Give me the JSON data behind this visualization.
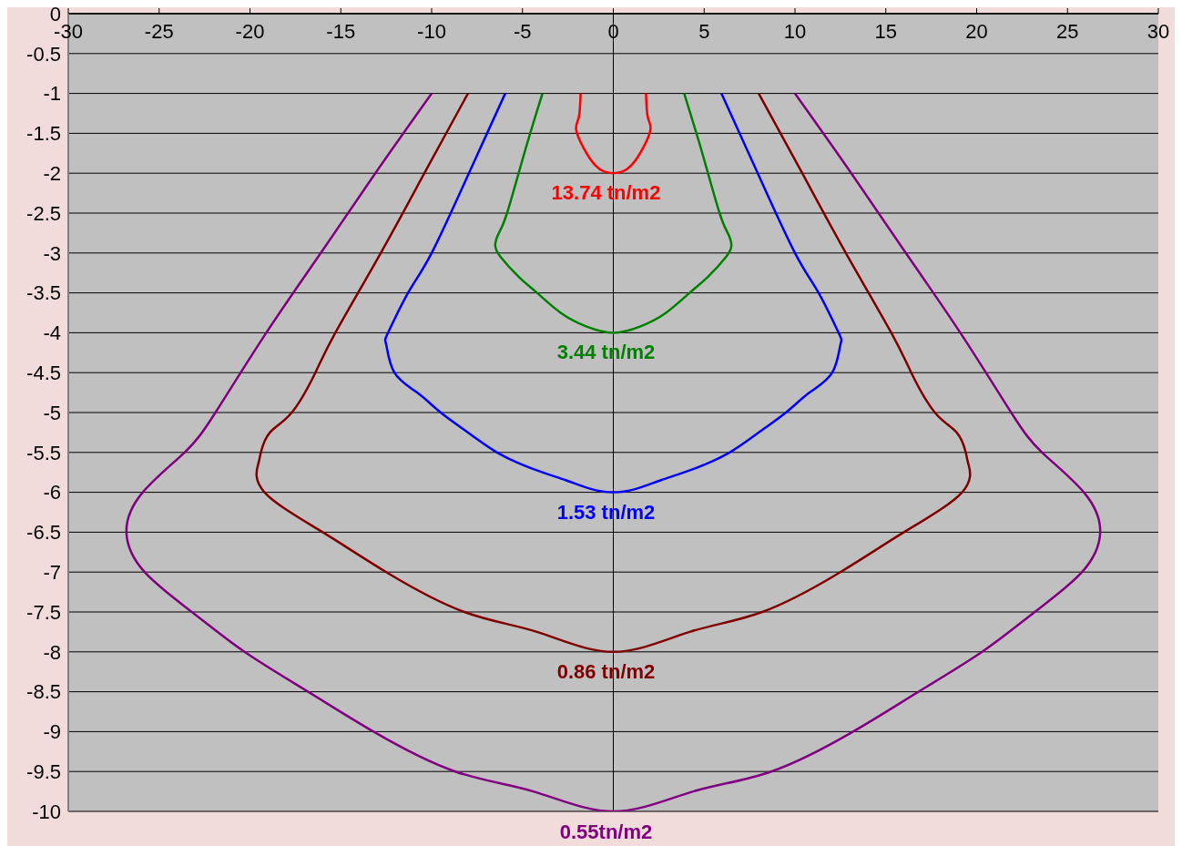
{
  "chart_data": {
    "type": "line",
    "xlim": [
      -30,
      30
    ],
    "xticks": [
      -30,
      -25,
      -20,
      -15,
      -10,
      -5,
      0,
      5,
      10,
      15,
      20,
      25,
      30
    ],
    "ylim": [
      -10,
      0
    ],
    "yticks": [
      -10,
      -9.5,
      -9,
      -8.5,
      -8,
      -7.5,
      -7,
      -6.5,
      -6,
      -5.5,
      -5,
      -4.5,
      -4,
      -3.5,
      -3,
      -2.5,
      -2,
      -1.5,
      -1,
      -0.5,
      0
    ],
    "grid": "y",
    "ref_lines": [
      {
        "axis": "x",
        "value": 0,
        "color": "#000000"
      }
    ],
    "annotations": [
      "13.74 tn/m2",
      "3.44 tn/m2",
      "1.53 tn/m2",
      "0.86 tn/m2",
      "0.55tn/m2"
    ],
    "series": [
      {
        "color": "#ff0000",
        "x": [
          -1.8,
          -1.9,
          -2.05,
          -1.6,
          -1,
          -0.5,
          0,
          0.5,
          1,
          1.6,
          2.05,
          1.9,
          1.8
        ],
        "values": [
          -1,
          -1.3,
          -1.45,
          -1.7,
          -1.9,
          -1.98,
          -2,
          -1.98,
          -1.9,
          -1.7,
          -1.45,
          -1.3,
          -1
        ]
      },
      {
        "color": "#008000",
        "x": [
          -3.9,
          -4.9,
          -5.85,
          -6.3,
          -6.5,
          -6.2,
          -5.2,
          -4.2,
          -2.9,
          -1.5,
          0,
          1.5,
          2.9,
          4.2,
          5.2,
          6.2,
          6.5,
          6.3,
          5.85,
          4.9,
          3.9
        ],
        "values": [
          -1,
          -1.75,
          -2.5,
          -2.75,
          -2.9,
          -3.05,
          -3.3,
          -3.5,
          -3.75,
          -3.92,
          -4,
          -3.92,
          -3.75,
          -3.5,
          -3.3,
          -3.05,
          -2.9,
          -2.75,
          -2.5,
          -1.75,
          -1
        ]
      },
      {
        "color": "#0000ff",
        "x": [
          -5.95,
          -7.95,
          -10,
          -11.3,
          -12.4,
          -12.5,
          -12.05,
          -10.8,
          -9.5,
          -8,
          -6.4,
          -4.5,
          -2.6,
          -1.2,
          0,
          1.2,
          2.6,
          4.5,
          6.4,
          8,
          9.5,
          10.8,
          12.05,
          12.5,
          12.4,
          11.3,
          10,
          7.95,
          5.95
        ],
        "values": [
          -1,
          -2,
          -3,
          -3.5,
          -4,
          -4.15,
          -4.5,
          -4.75,
          -5,
          -5.25,
          -5.5,
          -5.7,
          -5.85,
          -5.96,
          -6,
          -5.96,
          -5.85,
          -5.7,
          -5.5,
          -5.25,
          -5,
          -4.75,
          -4.5,
          -4.15,
          -4,
          -3.5,
          -3,
          -2,
          -1
        ]
      },
      {
        "color": "#800000",
        "x": [
          -8,
          -10.4,
          -12.8,
          -15.3,
          -16.4,
          -17.7,
          -18.9,
          -19.4,
          -19.55,
          -19.2,
          -16,
          -12.5,
          -8.2,
          -4.2,
          0,
          4.2,
          8.2,
          12.5,
          16,
          19.2,
          19.55,
          19.4,
          18.9,
          17.7,
          16.4,
          15.3,
          12.8,
          10.4,
          8
        ],
        "values": [
          -1,
          -2,
          -3,
          -4,
          -4.5,
          -5,
          -5.25,
          -5.5,
          -5.65,
          -6,
          -6.5,
          -7,
          -7.5,
          -7.75,
          -8,
          -7.75,
          -7.5,
          -7,
          -6.5,
          -6,
          -5.65,
          -5.5,
          -5.25,
          -5,
          -4.5,
          -4,
          -3,
          -2,
          -1
        ]
      },
      {
        "color": "#800080",
        "x": [
          -10,
          -13.1,
          -16.1,
          -19.1,
          -21.9,
          -23.6,
          -25.9,
          -26.8,
          -25.8,
          -23.2,
          -20.3,
          -16.8,
          -13.2,
          -8.7,
          -4.4,
          0,
          4.4,
          8.7,
          13.2,
          16.8,
          20.3,
          23.2,
          25.8,
          26.8,
          25.9,
          23.6,
          21.9,
          19.1,
          16.1,
          13.1,
          10
        ],
        "values": [
          -1,
          -2,
          -3,
          -4,
          -5,
          -5.5,
          -6,
          -6.5,
          -7,
          -7.5,
          -8,
          -8.5,
          -9,
          -9.5,
          -9.75,
          -10,
          -9.75,
          -9.5,
          -9,
          -8.5,
          -8,
          -7.5,
          -7,
          -6.5,
          -6,
          -5.5,
          -5,
          -4,
          -3,
          -2,
          -1
        ]
      }
    ]
  }
}
